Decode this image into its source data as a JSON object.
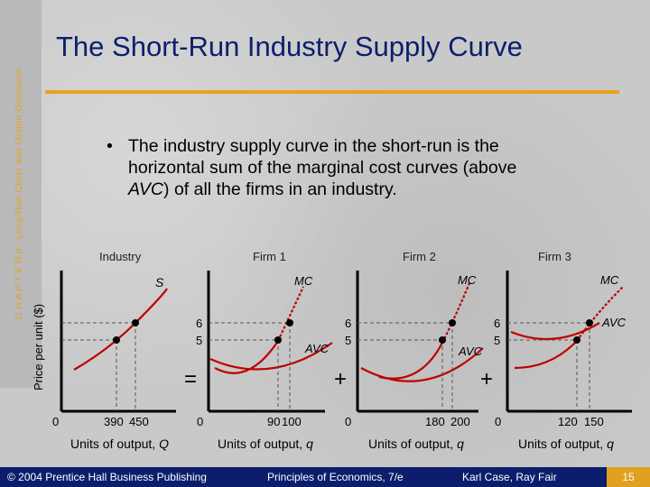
{
  "sidebar": {
    "chapter": "C H A P T E R  8 :  Long-Run Costs and Output Decisions"
  },
  "slide": {
    "title": "The Short-Run Industry Supply Curve",
    "bullet_pre": "The industry supply curve in the short-run is the horizontal sum of the marginal cost curves (above ",
    "bullet_em": "AVC",
    "bullet_post": ") of all the firms in an industry."
  },
  "figure": {
    "ylabel": "Price per unit ($)",
    "panels": [
      {
        "title": "Industry",
        "curve_label": "S",
        "xlabel_pre": "Units of output, ",
        "xlabel_var": "Q",
        "origin": "",
        "x_ticks": [
          "390",
          "450"
        ],
        "y_ticks": []
      },
      {
        "title": "Firm 1",
        "curve_label": "MC",
        "avc_label": "AVC",
        "xlabel_pre": "Units of output, ",
        "xlabel_var": "q",
        "origin": "0",
        "x_ticks": [
          "90",
          "100"
        ],
        "y_ticks": [
          "6",
          "5"
        ]
      },
      {
        "title": "Firm 2",
        "curve_label": "MC",
        "avc_label": "AVC",
        "xlabel_pre": "Units of output, ",
        "xlabel_var": "q",
        "origin": "0",
        "x_ticks": [
          "180",
          "200"
        ],
        "y_ticks": [
          "6",
          "5"
        ]
      },
      {
        "title": "Firm 3",
        "curve_label": "MC",
        "avc_label": "AVC",
        "xlabel_pre": "Units of output, ",
        "xlabel_var": "q",
        "origin": "0",
        "x_ticks": [
          "120",
          "150"
        ],
        "y_ticks": [
          "6",
          "5"
        ]
      }
    ],
    "industry_origin": "0",
    "industry_y_ticks": [],
    "operators": [
      "=",
      "+",
      "+"
    ],
    "colors": {
      "curve": "#c00000",
      "axis": "#000000",
      "dashed": "#555555"
    }
  },
  "footer": {
    "copyright": "© 2004 Prentice Hall Business Publishing",
    "book": "Principles of Economics, 7/e",
    "authors": "Karl Case, Ray Fair",
    "page": "15"
  }
}
